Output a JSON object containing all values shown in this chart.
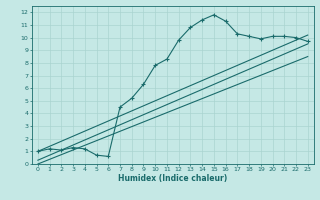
{
  "title": "",
  "xlabel": "Humidex (Indice chaleur)",
  "xlim": [
    -0.5,
    23.5
  ],
  "ylim": [
    0,
    12.5
  ],
  "xticks": [
    0,
    1,
    2,
    3,
    4,
    5,
    6,
    7,
    8,
    9,
    10,
    11,
    12,
    13,
    14,
    15,
    16,
    17,
    18,
    19,
    20,
    21,
    22,
    23
  ],
  "yticks": [
    0,
    1,
    2,
    3,
    4,
    5,
    6,
    7,
    8,
    9,
    10,
    11,
    12
  ],
  "bg_color": "#c5e8e5",
  "grid_color": "#aad4d0",
  "line_color": "#1a6b6b",
  "curve_x": [
    0,
    1,
    2,
    3,
    4,
    5,
    6,
    7,
    8,
    9,
    10,
    11,
    12,
    13,
    14,
    15,
    16,
    17,
    18,
    19,
    20,
    21,
    22,
    23
  ],
  "curve_y": [
    1.0,
    1.2,
    1.1,
    1.3,
    1.2,
    0.7,
    0.6,
    4.5,
    5.2,
    6.3,
    7.8,
    8.3,
    9.8,
    10.8,
    11.4,
    11.8,
    11.3,
    10.3,
    10.1,
    9.9,
    10.1,
    10.1,
    10.0,
    9.7
  ],
  "line1_x": [
    0,
    23
  ],
  "line1_y": [
    1.0,
    10.2
  ],
  "line2_x": [
    0,
    23
  ],
  "line2_y": [
    0.3,
    9.5
  ],
  "line3_x": [
    0,
    23
  ],
  "line3_y": [
    0.0,
    8.5
  ]
}
